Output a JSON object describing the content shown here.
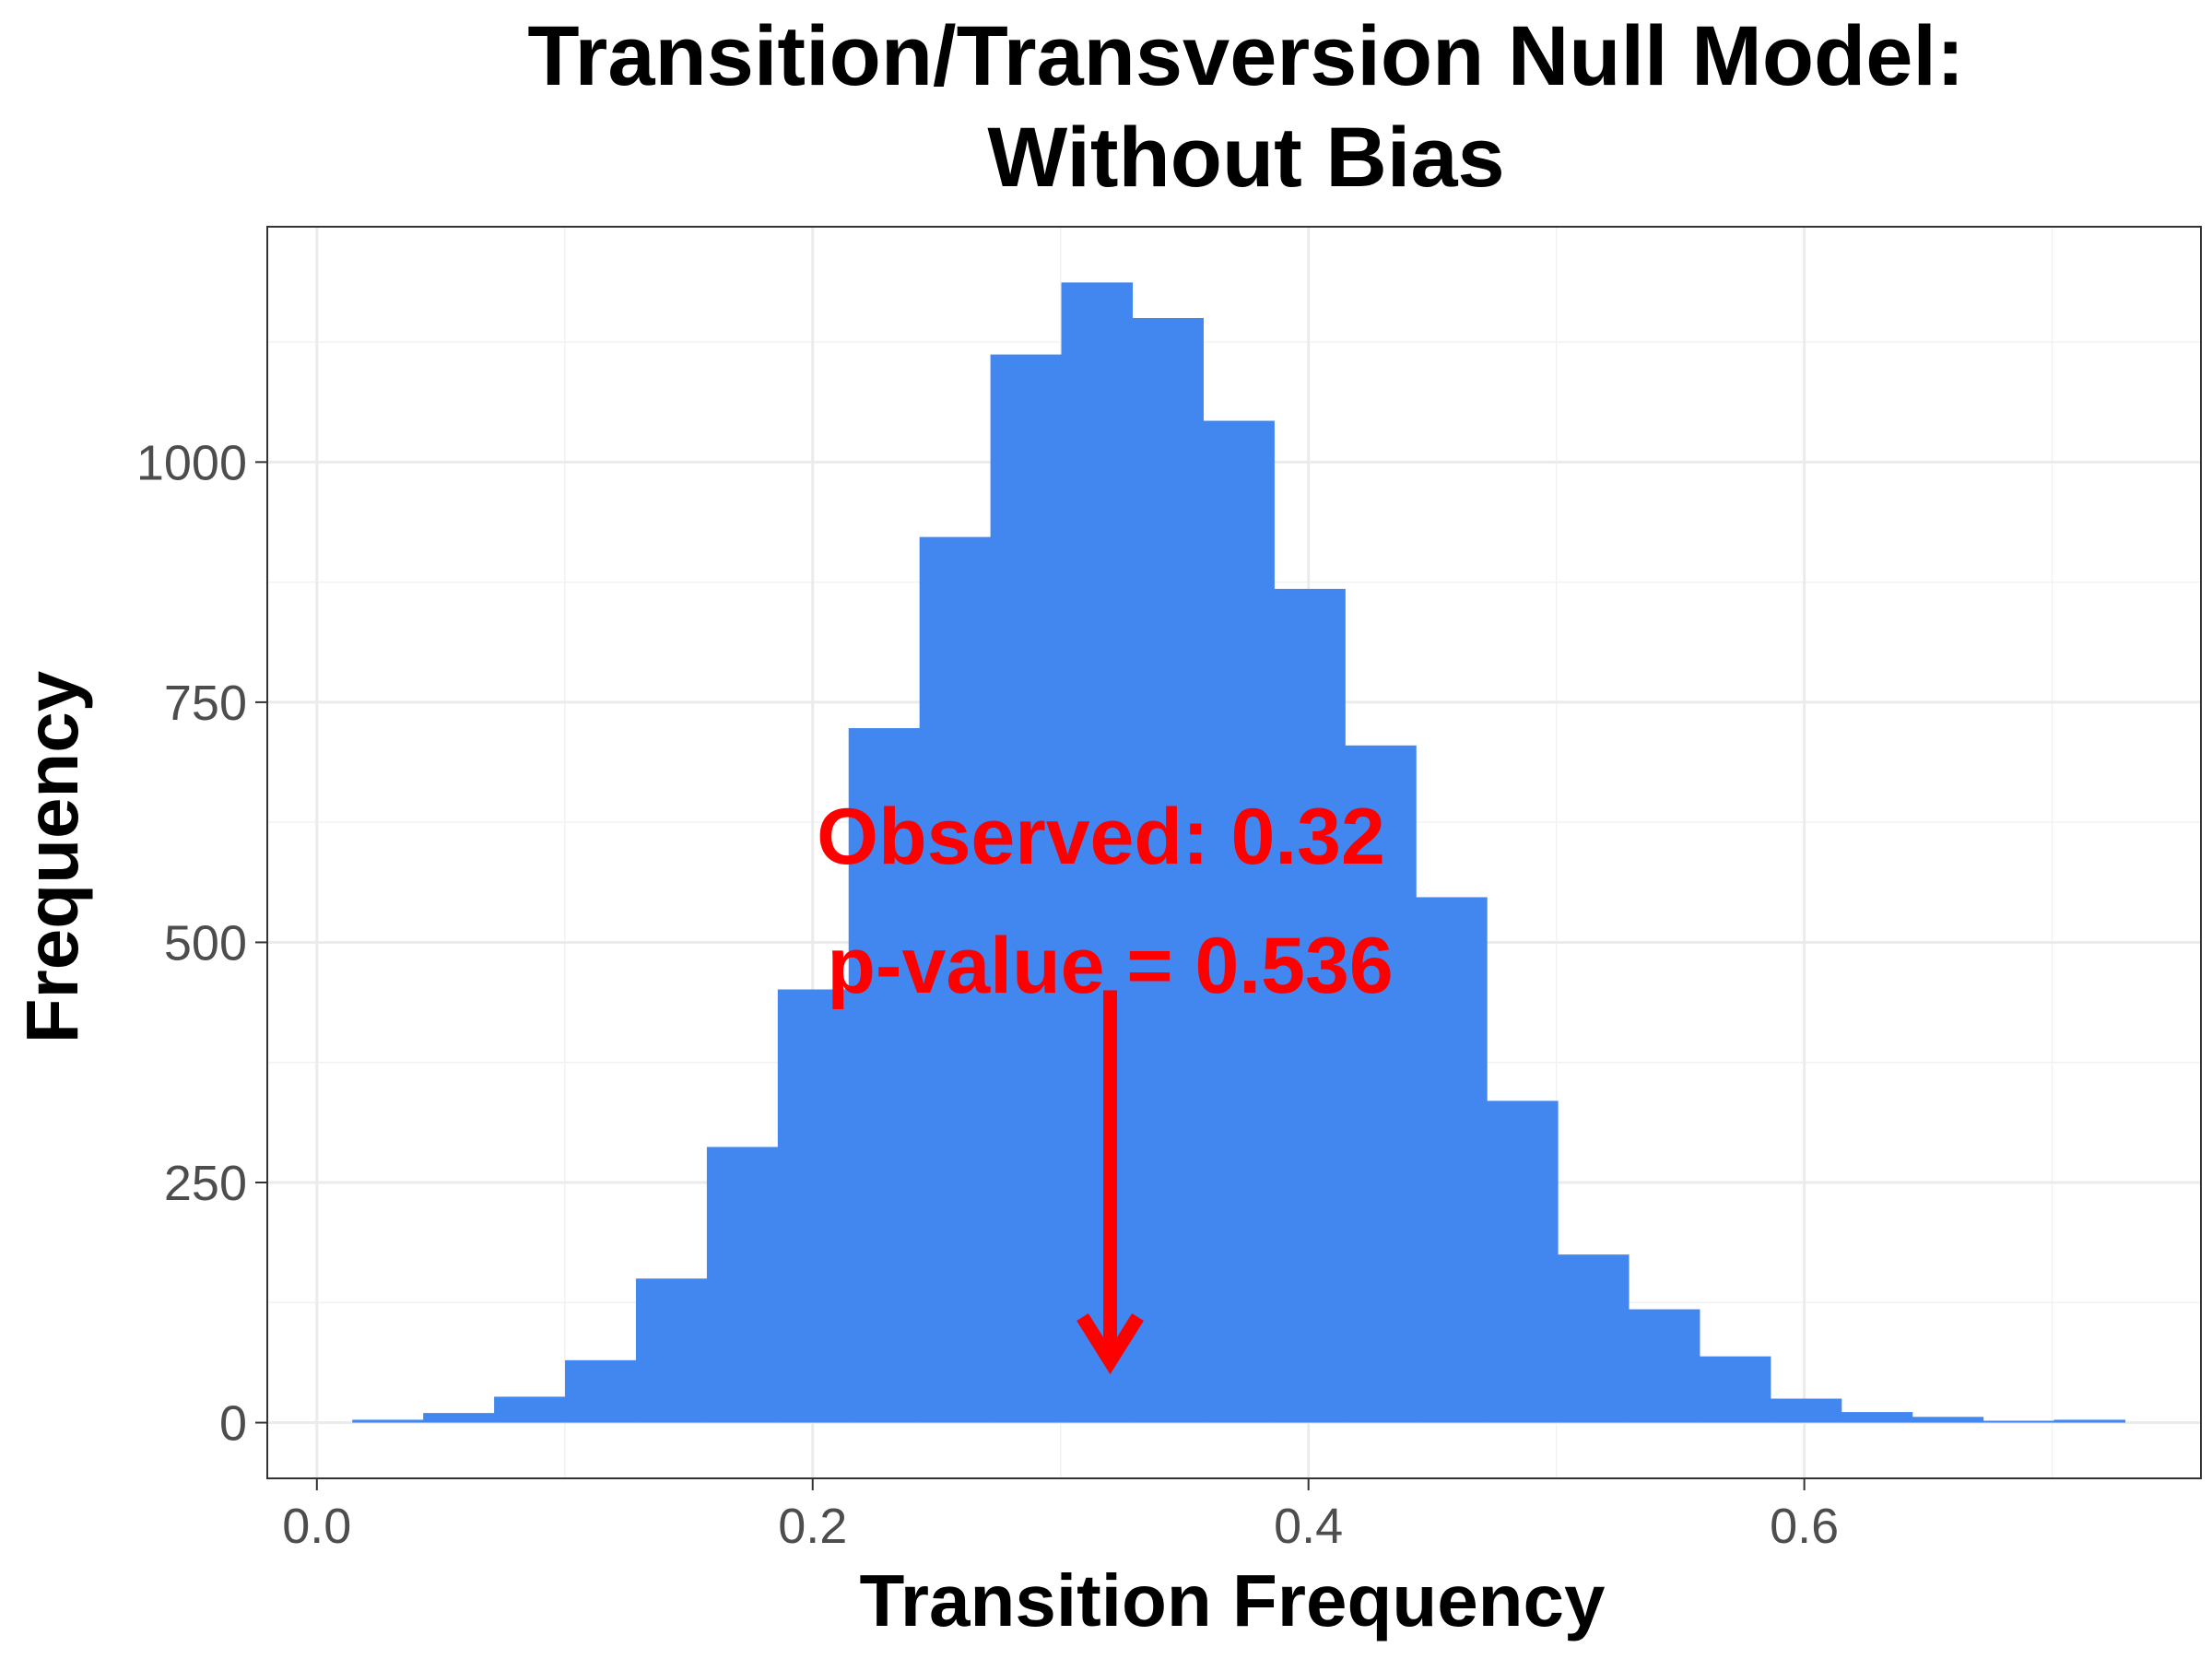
{
  "chart_data": {
    "type": "bar",
    "title": [
      "Transition/Transversion Null Model:",
      "Without Bias"
    ],
    "xlabel": "Transition Frequency",
    "ylabel": "Frequency",
    "xlim": [
      -0.02,
      0.76
    ],
    "ylim": [
      -58,
      1245
    ],
    "x_ticks": [
      0.0,
      0.2,
      0.4,
      0.6
    ],
    "x_tick_labels": [
      "0.0",
      "0.2",
      "0.4",
      "0.6"
    ],
    "y_ticks": [
      0,
      250,
      500,
      750,
      1000
    ],
    "y_tick_labels": [
      "0",
      "250",
      "500",
      "750",
      "1000"
    ],
    "grid": true,
    "bin_width": 0.0286,
    "bin_start": 0.0143,
    "values": [
      3,
      10,
      27,
      65,
      150,
      287,
      451,
      723,
      922,
      1112,
      1187,
      1150,
      1043,
      868,
      705,
      547,
      335,
      175,
      118,
      69,
      25,
      11,
      6,
      2,
      3
    ],
    "bar_color": "#4286f0",
    "annotation": {
      "observed_label": "Observed: 0.32",
      "pvalue_label": "p-value = 0.536",
      "x": 0.32,
      "arrow_from_y": 450,
      "arrow_to_y": 60,
      "color": "#ff0000"
    }
  }
}
